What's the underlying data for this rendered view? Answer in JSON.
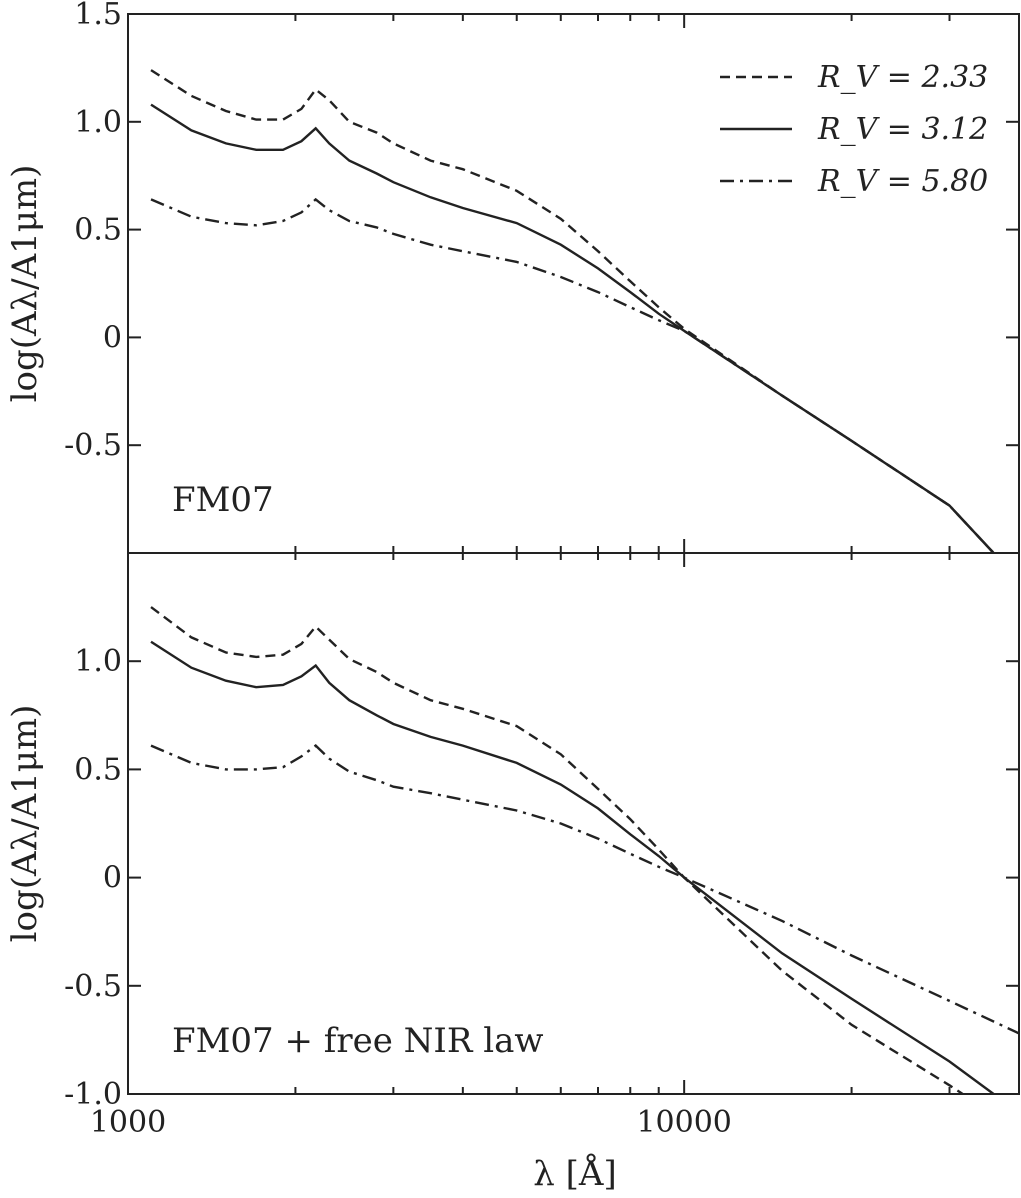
{
  "chart_data": [
    {
      "type": "line",
      "panel_label": "FM07",
      "xscale": "log",
      "xlim": [
        1000,
        40000
      ],
      "ylim": [
        -1.0,
        1.5
      ],
      "xlabel": "λ [Å]",
      "ylabel": "log(Aλ/A1μm)",
      "yticks": [
        -0.5,
        0,
        0.5,
        1.0,
        1.5
      ],
      "ytick_labels": [
        "-0.5",
        "0",
        "0.5",
        "1.0",
        "1.5"
      ],
      "legend_position": "top-right",
      "series": [
        {
          "name": "R_V = 2.33",
          "dash": "dashed",
          "x": [
            1100,
            1300,
            1500,
            1700,
            1900,
            2050,
            2175,
            2300,
            2500,
            2800,
            3000,
            3500,
            4000,
            5000,
            6000,
            7000,
            8000,
            9000,
            10000,
            15000,
            20000,
            30000,
            36000
          ],
          "y": [
            1.24,
            1.12,
            1.05,
            1.01,
            1.01,
            1.06,
            1.15,
            1.1,
            1.0,
            0.95,
            0.9,
            0.82,
            0.78,
            0.68,
            0.55,
            0.4,
            0.26,
            0.14,
            0.04,
            -0.27,
            -0.48,
            -0.78,
            -1.0
          ]
        },
        {
          "name": "R_V = 3.12",
          "dash": "solid",
          "x": [
            1100,
            1300,
            1500,
            1700,
            1900,
            2050,
            2175,
            2300,
            2500,
            2800,
            3000,
            3500,
            4000,
            5000,
            6000,
            7000,
            8000,
            9000,
            10000,
            15000,
            20000,
            30000,
            36000
          ],
          "y": [
            1.08,
            0.96,
            0.9,
            0.87,
            0.87,
            0.91,
            0.97,
            0.9,
            0.82,
            0.76,
            0.72,
            0.65,
            0.6,
            0.53,
            0.43,
            0.32,
            0.21,
            0.11,
            0.03,
            -0.27,
            -0.48,
            -0.78,
            -1.0
          ]
        },
        {
          "name": "R_V = 5.80",
          "dash": "dashdot",
          "x": [
            1100,
            1300,
            1500,
            1700,
            1900,
            2050,
            2175,
            2300,
            2500,
            2800,
            3000,
            3500,
            4000,
            5000,
            6000,
            7000,
            8000,
            9000,
            10000,
            15000,
            20000,
            30000,
            36000
          ],
          "y": [
            0.64,
            0.56,
            0.53,
            0.52,
            0.54,
            0.58,
            0.64,
            0.59,
            0.54,
            0.51,
            0.48,
            0.43,
            0.4,
            0.35,
            0.28,
            0.21,
            0.14,
            0.08,
            0.03,
            -0.27,
            -0.48,
            -0.78,
            -1.0
          ]
        }
      ]
    },
    {
      "type": "line",
      "panel_label": "FM07 + free NIR law",
      "xscale": "log",
      "xlim": [
        1000,
        40000
      ],
      "ylim": [
        -1.0,
        1.5
      ],
      "xlabel": "λ [Å]",
      "ylabel": "log(Aλ/A1μm)",
      "xticks": [
        1000,
        10000
      ],
      "xtick_labels": [
        "1000",
        "10000"
      ],
      "yticks": [
        -1.0,
        -0.5,
        0,
        0.5,
        1.0
      ],
      "ytick_labels": [
        "-1.0",
        "-0.5",
        "0",
        "0.5",
        "1.0"
      ],
      "series": [
        {
          "name": "R_V = 2.33",
          "dash": "dashed",
          "x": [
            1100,
            1300,
            1500,
            1700,
            1900,
            2050,
            2175,
            2300,
            2500,
            2800,
            3000,
            3500,
            4000,
            5000,
            6000,
            7000,
            8000,
            9000,
            10000,
            15000,
            20000,
            30000,
            33000
          ],
          "y": [
            1.25,
            1.11,
            1.04,
            1.02,
            1.03,
            1.08,
            1.16,
            1.1,
            1.01,
            0.95,
            0.9,
            0.82,
            0.78,
            0.7,
            0.57,
            0.41,
            0.27,
            0.13,
            0.0,
            -0.43,
            -0.68,
            -0.96,
            -1.03
          ]
        },
        {
          "name": "R_V = 3.12",
          "dash": "solid",
          "x": [
            1100,
            1300,
            1500,
            1700,
            1900,
            2050,
            2175,
            2300,
            2500,
            2800,
            3000,
            3500,
            4000,
            5000,
            6000,
            7000,
            8000,
            9000,
            10000,
            15000,
            20000,
            30000,
            36000
          ],
          "y": [
            1.09,
            0.97,
            0.91,
            0.88,
            0.89,
            0.93,
            0.98,
            0.9,
            0.82,
            0.75,
            0.71,
            0.65,
            0.61,
            0.53,
            0.43,
            0.32,
            0.2,
            0.1,
            0.0,
            -0.35,
            -0.56,
            -0.85,
            -1.0
          ]
        },
        {
          "name": "R_V = 5.80",
          "dash": "dashdot",
          "x": [
            1100,
            1300,
            1500,
            1700,
            1900,
            2050,
            2175,
            2300,
            2500,
            2800,
            3000,
            3500,
            4000,
            5000,
            6000,
            7000,
            8000,
            9000,
            10000,
            15000,
            20000,
            30000,
            40000
          ],
          "y": [
            0.61,
            0.53,
            0.5,
            0.5,
            0.51,
            0.56,
            0.61,
            0.55,
            0.49,
            0.45,
            0.42,
            0.39,
            0.36,
            0.31,
            0.25,
            0.18,
            0.11,
            0.05,
            0.0,
            -0.2,
            -0.36,
            -0.57,
            -0.72
          ]
        }
      ]
    }
  ]
}
